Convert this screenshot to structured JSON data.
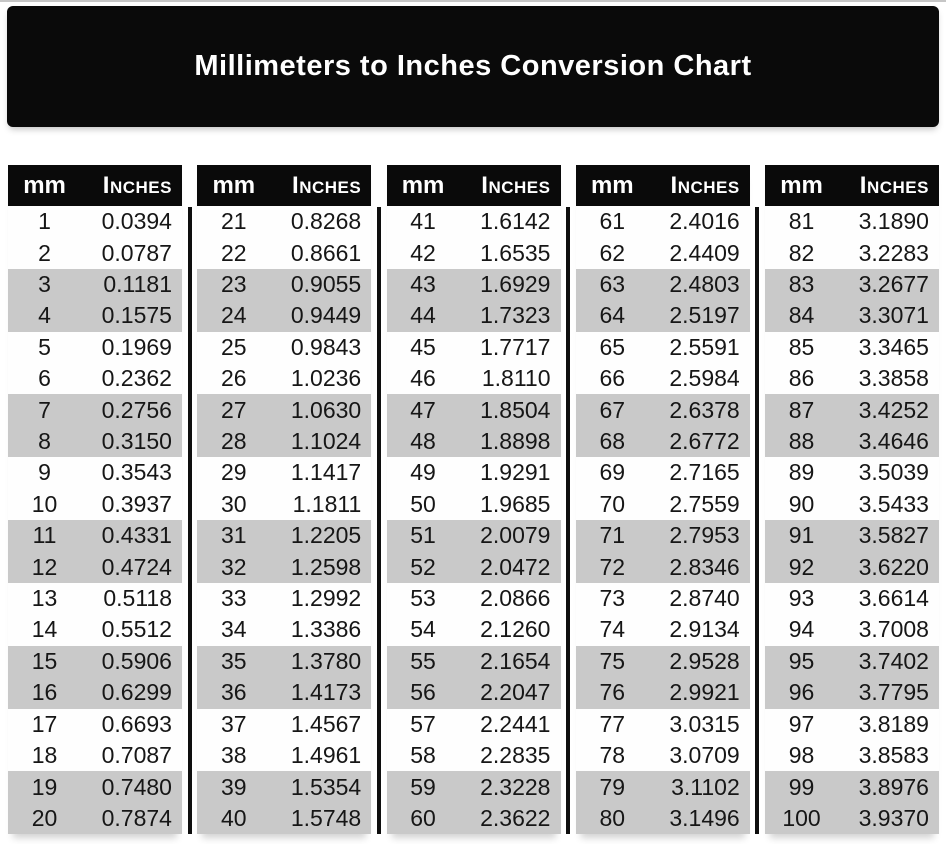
{
  "title": "Millimeters to Inches Conversion Chart",
  "colors": {
    "banner_bg": "#0a0a0a",
    "header_bg": "#0a0a0a",
    "header_text": "#ffffff",
    "row_shade": "#c9c9c9",
    "body_text": "#161616",
    "divider": "#0e0e0e"
  },
  "chart_data": {
    "type": "table",
    "title": "Millimeters to Inches Conversion Chart",
    "column_headers": [
      "mm",
      "Inches"
    ],
    "layout": "5 side-by-side column groups of 20 rows; rows shaded gray in alternating pairs (3-4, 7-8, 11-12, 15-16, 19-20 of each group)",
    "groups": [
      {
        "rows": [
          [
            "1",
            "0.0394"
          ],
          [
            "2",
            "0.0787"
          ],
          [
            "3",
            "0.1181"
          ],
          [
            "4",
            "0.1575"
          ],
          [
            "5",
            "0.1969"
          ],
          [
            "6",
            "0.2362"
          ],
          [
            "7",
            "0.2756"
          ],
          [
            "8",
            "0.3150"
          ],
          [
            "9",
            "0.3543"
          ],
          [
            "10",
            "0.3937"
          ],
          [
            "11",
            "0.4331"
          ],
          [
            "12",
            "0.4724"
          ],
          [
            "13",
            "0.5118"
          ],
          [
            "14",
            "0.5512"
          ],
          [
            "15",
            "0.5906"
          ],
          [
            "16",
            "0.6299"
          ],
          [
            "17",
            "0.6693"
          ],
          [
            "18",
            "0.7087"
          ],
          [
            "19",
            "0.7480"
          ],
          [
            "20",
            "0.7874"
          ]
        ]
      },
      {
        "rows": [
          [
            "21",
            "0.8268"
          ],
          [
            "22",
            "0.8661"
          ],
          [
            "23",
            "0.9055"
          ],
          [
            "24",
            "0.9449"
          ],
          [
            "25",
            "0.9843"
          ],
          [
            "26",
            "1.0236"
          ],
          [
            "27",
            "1.0630"
          ],
          [
            "28",
            "1.1024"
          ],
          [
            "29",
            "1.1417"
          ],
          [
            "30",
            "1.1811"
          ],
          [
            "31",
            "1.2205"
          ],
          [
            "32",
            "1.2598"
          ],
          [
            "33",
            "1.2992"
          ],
          [
            "34",
            "1.3386"
          ],
          [
            "35",
            "1.3780"
          ],
          [
            "36",
            "1.4173"
          ],
          [
            "37",
            "1.4567"
          ],
          [
            "38",
            "1.4961"
          ],
          [
            "39",
            "1.5354"
          ],
          [
            "40",
            "1.5748"
          ]
        ]
      },
      {
        "rows": [
          [
            "41",
            "1.6142"
          ],
          [
            "42",
            "1.6535"
          ],
          [
            "43",
            "1.6929"
          ],
          [
            "44",
            "1.7323"
          ],
          [
            "45",
            "1.7717"
          ],
          [
            "46",
            "1.8110"
          ],
          [
            "47",
            "1.8504"
          ],
          [
            "48",
            "1.8898"
          ],
          [
            "49",
            "1.9291"
          ],
          [
            "50",
            "1.9685"
          ],
          [
            "51",
            "2.0079"
          ],
          [
            "52",
            "2.0472"
          ],
          [
            "53",
            "2.0866"
          ],
          [
            "54",
            "2.1260"
          ],
          [
            "55",
            "2.1654"
          ],
          [
            "56",
            "2.2047"
          ],
          [
            "57",
            "2.2441"
          ],
          [
            "58",
            "2.2835"
          ],
          [
            "59",
            "2.3228"
          ],
          [
            "60",
            "2.3622"
          ]
        ]
      },
      {
        "rows": [
          [
            "61",
            "2.4016"
          ],
          [
            "62",
            "2.4409"
          ],
          [
            "63",
            "2.4803"
          ],
          [
            "64",
            "2.5197"
          ],
          [
            "65",
            "2.5591"
          ],
          [
            "66",
            "2.5984"
          ],
          [
            "67",
            "2.6378"
          ],
          [
            "68",
            "2.6772"
          ],
          [
            "69",
            "2.7165"
          ],
          [
            "70",
            "2.7559"
          ],
          [
            "71",
            "2.7953"
          ],
          [
            "72",
            "2.8346"
          ],
          [
            "73",
            "2.8740"
          ],
          [
            "74",
            "2.9134"
          ],
          [
            "75",
            "2.9528"
          ],
          [
            "76",
            "2.9921"
          ],
          [
            "77",
            "3.0315"
          ],
          [
            "78",
            "3.0709"
          ],
          [
            "79",
            "3.1102"
          ],
          [
            "80",
            "3.1496"
          ]
        ]
      },
      {
        "rows": [
          [
            "81",
            "3.1890"
          ],
          [
            "82",
            "3.2283"
          ],
          [
            "83",
            "3.2677"
          ],
          [
            "84",
            "3.3071"
          ],
          [
            "85",
            "3.3465"
          ],
          [
            "86",
            "3.3858"
          ],
          [
            "87",
            "3.4252"
          ],
          [
            "88",
            "3.4646"
          ],
          [
            "89",
            "3.5039"
          ],
          [
            "90",
            "3.5433"
          ],
          [
            "91",
            "3.5827"
          ],
          [
            "92",
            "3.6220"
          ],
          [
            "93",
            "3.6614"
          ],
          [
            "94",
            "3.7008"
          ],
          [
            "95",
            "3.7402"
          ],
          [
            "96",
            "3.7795"
          ],
          [
            "97",
            "3.8189"
          ],
          [
            "98",
            "3.8583"
          ],
          [
            "99",
            "3.8976"
          ],
          [
            "100",
            "3.9370"
          ]
        ]
      }
    ]
  }
}
